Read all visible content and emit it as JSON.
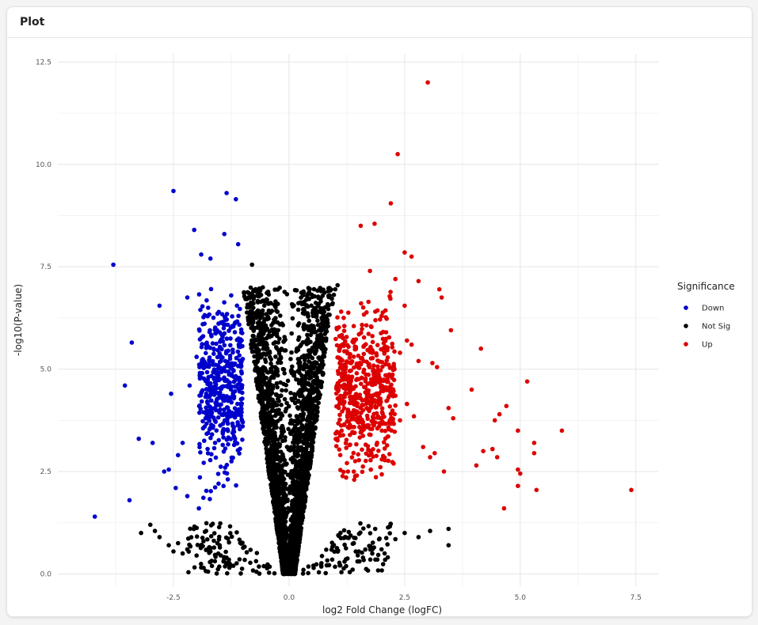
{
  "panel": {
    "title": "Plot"
  },
  "chart_data": {
    "type": "scatter",
    "xlabel": "log2 Fold Change (logFC)",
    "ylabel": "-log10(P-value)",
    "xlim": [
      -5.0,
      8.0
    ],
    "ylim": [
      -0.3,
      12.7
    ],
    "x_ticks": [
      -2.5,
      0.0,
      2.5,
      5.0,
      7.5
    ],
    "x_tick_labels": [
      "-2.5",
      "0.0",
      "2.5",
      "5.0",
      "7.5"
    ],
    "y_ticks": [
      0.0,
      2.5,
      5.0,
      7.5,
      10.0,
      12.5
    ],
    "y_tick_labels": [
      "0.0",
      "2.5",
      "5.0",
      "7.5",
      "10.0",
      "12.5"
    ],
    "grid": true,
    "legend": {
      "title": "Significance",
      "position": "right",
      "entries": [
        {
          "label": "Down",
          "color": "#0000cc"
        },
        {
          "label": "Not Sig",
          "color": "#000000"
        },
        {
          "label": "Up",
          "color": "#dd0000"
        }
      ]
    },
    "series": [
      {
        "name": "Down",
        "color": "#0000cc",
        "points": [
          [
            -4.2,
            1.4
          ],
          [
            -3.8,
            7.55
          ],
          [
            -3.55,
            4.6
          ],
          [
            -3.45,
            1.8
          ],
          [
            -3.4,
            5.65
          ],
          [
            -3.25,
            3.3
          ],
          [
            -2.95,
            3.2
          ],
          [
            -2.8,
            6.55
          ],
          [
            -2.5,
            9.35
          ],
          [
            -2.2,
            6.75
          ],
          [
            -2.05,
            8.4
          ],
          [
            -1.35,
            9.3
          ],
          [
            -1.15,
            9.15
          ],
          [
            -1.1,
            8.05
          ],
          [
            -1.4,
            8.3
          ],
          [
            -1.9,
            7.8
          ],
          [
            -1.7,
            7.7
          ],
          [
            -2.6,
            2.55
          ],
          [
            -2.4,
            2.9
          ],
          [
            -2.55,
            4.4
          ],
          [
            -2.15,
            4.6
          ],
          [
            -1.95,
            1.6
          ],
          [
            -2.3,
            3.2
          ],
          [
            -2.0,
            5.3
          ],
          [
            -1.85,
            3.95
          ],
          [
            -2.7,
            2.5
          ],
          [
            -2.45,
            2.1
          ],
          [
            -2.2,
            1.9
          ],
          [
            -1.6,
            3.2
          ],
          [
            -1.75,
            6.5
          ],
          [
            -1.5,
            5.9
          ],
          [
            -1.25,
            6.8
          ]
        ],
        "generated": {
          "count": 460,
          "x_range": [
            -1.95,
            -1.0
          ],
          "y_range": [
            1.3,
            7.6
          ]
        }
      },
      {
        "name": "Not Sig",
        "color": "#000000",
        "points": [
          [
            -3.2,
            1.0
          ],
          [
            -3.0,
            1.2
          ],
          [
            -2.9,
            1.05
          ],
          [
            -2.8,
            0.9
          ],
          [
            -2.6,
            0.7
          ],
          [
            -2.5,
            0.55
          ],
          [
            -2.4,
            0.75
          ],
          [
            -2.3,
            0.5
          ],
          [
            -2.2,
            0.6
          ],
          [
            -2.0,
            0.45
          ],
          [
            -1.85,
            0.8
          ],
          [
            -1.7,
            0.55
          ],
          [
            -1.5,
            0.7
          ],
          [
            -1.3,
            0.35
          ],
          [
            -0.8,
            7.55
          ],
          [
            2.3,
            0.85
          ],
          [
            2.5,
            1.0
          ],
          [
            2.8,
            0.9
          ],
          [
            3.05,
            1.05
          ],
          [
            3.45,
            1.1
          ],
          [
            3.45,
            0.7
          ],
          [
            2.0,
            0.6
          ],
          [
            1.8,
            0.5
          ],
          [
            1.6,
            0.4
          ],
          [
            1.4,
            0.75
          ],
          [
            1.2,
            0.3
          ],
          [
            1.05,
            7.05
          ],
          [
            1.0,
            6.95
          ]
        ],
        "generated": {
          "count": 3000,
          "shape": "v",
          "x_range": [
            -1.25,
            1.2
          ],
          "y_range": [
            0.0,
            7.0
          ]
        }
      },
      {
        "name": "Up",
        "color": "#dd0000",
        "points": [
          [
            3.0,
            12.0
          ],
          [
            2.35,
            10.25
          ],
          [
            2.2,
            9.05
          ],
          [
            1.85,
            8.55
          ],
          [
            1.55,
            8.5
          ],
          [
            2.5,
            7.85
          ],
          [
            2.65,
            7.75
          ],
          [
            2.8,
            7.15
          ],
          [
            3.25,
            6.95
          ],
          [
            3.3,
            6.75
          ],
          [
            3.5,
            5.95
          ],
          [
            4.15,
            5.5
          ],
          [
            5.15,
            4.7
          ],
          [
            3.95,
            4.5
          ],
          [
            3.45,
            4.05
          ],
          [
            3.55,
            3.8
          ],
          [
            4.7,
            4.1
          ],
          [
            4.55,
            3.9
          ],
          [
            4.45,
            3.75
          ],
          [
            4.95,
            3.5
          ],
          [
            5.9,
            3.5
          ],
          [
            5.3,
            3.2
          ],
          [
            5.3,
            2.95
          ],
          [
            4.4,
            3.05
          ],
          [
            4.2,
            3.0
          ],
          [
            4.5,
            2.85
          ],
          [
            4.05,
            2.65
          ],
          [
            4.95,
            2.55
          ],
          [
            5.0,
            2.45
          ],
          [
            4.95,
            2.15
          ],
          [
            5.35,
            2.05
          ],
          [
            7.4,
            2.05
          ],
          [
            4.65,
            1.6
          ],
          [
            3.35,
            2.5
          ],
          [
            3.15,
            2.95
          ],
          [
            3.05,
            2.85
          ],
          [
            2.9,
            3.1
          ],
          [
            2.7,
            3.85
          ],
          [
            2.55,
            4.15
          ],
          [
            2.4,
            3.75
          ],
          [
            3.1,
            5.15
          ],
          [
            3.2,
            5.05
          ],
          [
            2.8,
            5.2
          ],
          [
            2.4,
            5.4
          ],
          [
            2.55,
            5.7
          ],
          [
            2.65,
            5.6
          ],
          [
            2.1,
            5.9
          ],
          [
            2.5,
            6.55
          ],
          [
            1.75,
            7.4
          ],
          [
            2.3,
            7.2
          ]
        ],
        "generated": {
          "count": 560,
          "x_range": [
            1.0,
            2.3
          ],
          "y_range": [
            1.3,
            7.3
          ]
        }
      }
    ]
  }
}
